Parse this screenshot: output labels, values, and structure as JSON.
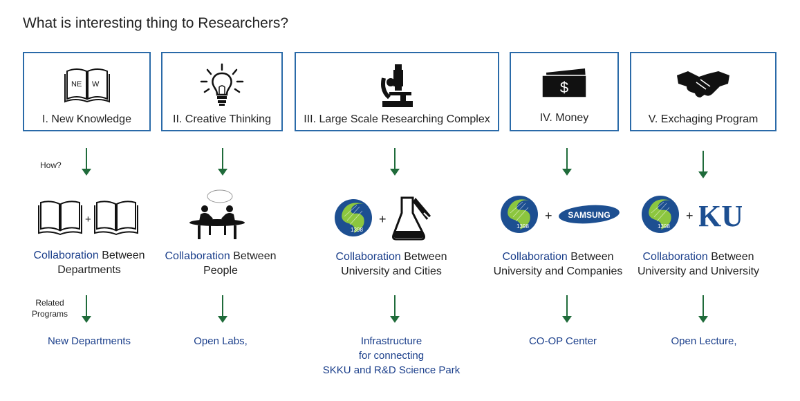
{
  "title": "What is interesting thing to Researchers?",
  "columns": [
    {
      "label": "I. New Knowledge",
      "icon": "new-book-icon",
      "book_text_left": "NE",
      "book_text_right": "W",
      "collab_highlight": "Collaboration",
      "collab_rest": " Between",
      "collab_line2": "Departments",
      "program": "New Departments"
    },
    {
      "label": "II. Creative Thinking",
      "icon": "lightbulb-icon",
      "collab_highlight": "Collaboration",
      "collab_rest": " Between",
      "collab_line2": "People",
      "program": "Open Labs,"
    },
    {
      "label": "III. Large Scale Researching Complex",
      "icon": "microscope-icon",
      "collab_highlight": "Collaboration",
      "collab_rest": " Between",
      "collab_line2": "University and Cities",
      "program_lines": [
        "Infrastructure",
        "for connecting",
        "SKKU and R&D Science Park"
      ]
    },
    {
      "label": "IV. Money",
      "icon": "money-icon",
      "money_symbol": "$",
      "collab_highlight": "Collaboration",
      "collab_rest": " Between",
      "collab_line2": "University and Companies",
      "program": "CO-OP Center"
    },
    {
      "label": "V.  Exchaging Program",
      "icon": "handshake-icon",
      "collab_highlight": "Collaboration",
      "collab_rest": " Between",
      "collab_line2": "University and University",
      "program": "Open Lecture,"
    }
  ],
  "side_labels": {
    "how": "How?",
    "related_line1": "Related",
    "related_line2": "Programs"
  },
  "logos": {
    "skku_year": "1398",
    "samsung": "SAMSUNG",
    "ku": "KU",
    "plus": "+"
  },
  "colors": {
    "box_border": "#2a6aa8",
    "arrow": "#1f6b3a",
    "highlight": "#1b3f8b",
    "logo_green": "#8cc63f",
    "logo_blue": "#1d4f91"
  }
}
